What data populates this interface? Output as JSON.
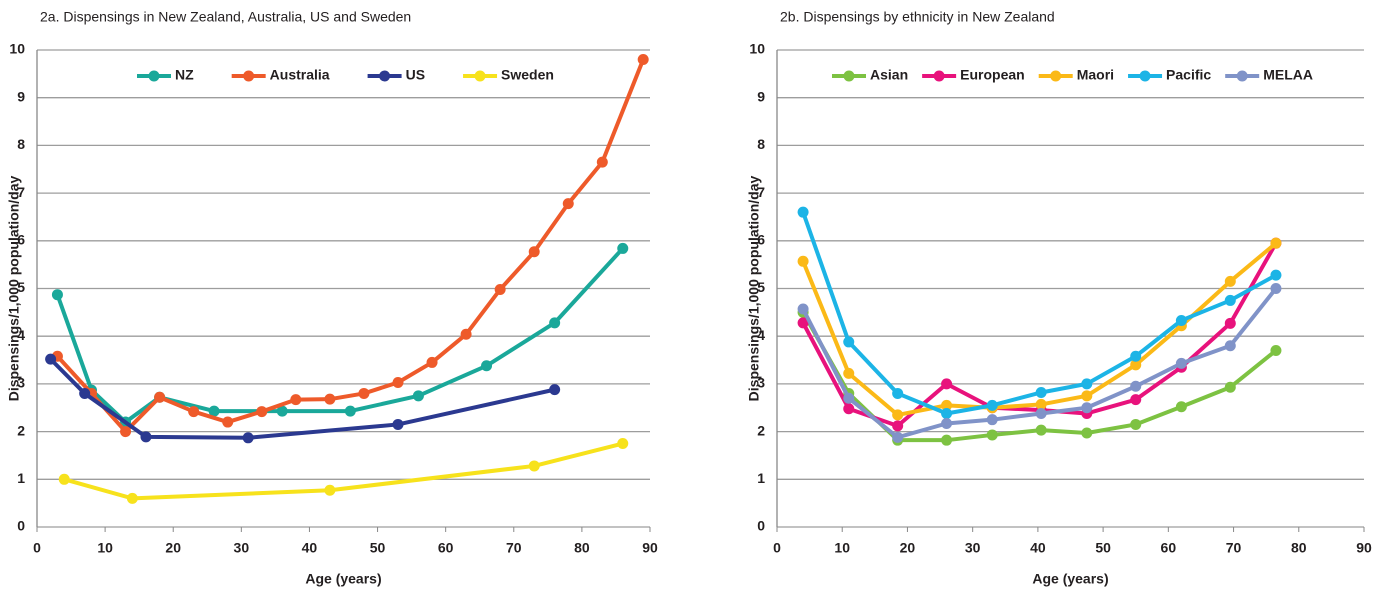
{
  "chart_data": [
    {
      "type": "line",
      "title": "2a. Dispensings in New Zealand, Australia, US and Sweden",
      "xlabel": "Age (years)",
      "ylabel": "Dispensings/1,000 population/day",
      "xlim": [
        0,
        90
      ],
      "xticks": [
        0,
        10,
        20,
        30,
        40,
        50,
        60,
        70,
        80,
        90
      ],
      "ylim": [
        0,
        10
      ],
      "yticks": [
        0,
        1,
        2,
        3,
        4,
        5,
        6,
        7,
        8,
        9,
        10
      ],
      "grid": true,
      "legend": "top",
      "series": [
        {
          "name": "NZ",
          "color": "#1aa89a",
          "x": [
            3,
            8,
            13,
            18,
            26,
            36,
            46,
            56,
            66,
            76,
            86
          ],
          "values": [
            4.87,
            2.87,
            2.2,
            2.72,
            2.43,
            2.43,
            2.43,
            2.75,
            3.38,
            4.28,
            5.84
          ]
        },
        {
          "name": "Australia",
          "color": "#ee5a2a",
          "x": [
            3,
            8,
            13,
            18,
            23,
            28,
            33,
            38,
            43,
            48,
            53,
            58,
            63,
            68,
            73,
            78,
            83,
            89
          ],
          "values": [
            3.58,
            2.8,
            2.0,
            2.72,
            2.42,
            2.2,
            2.42,
            2.67,
            2.68,
            2.8,
            3.03,
            3.45,
            4.04,
            4.98,
            5.77,
            6.78,
            7.65,
            9.8
          ]
        },
        {
          "name": "US",
          "color": "#2b3990",
          "x": [
            2,
            7,
            16,
            31,
            53,
            76
          ],
          "values": [
            3.52,
            2.8,
            1.89,
            1.87,
            2.15,
            2.88
          ]
        },
        {
          "name": "Sweden",
          "color": "#f7e21c",
          "x": [
            4,
            14,
            43,
            73,
            86
          ],
          "values": [
            1.0,
            0.6,
            0.77,
            1.28,
            1.75
          ]
        }
      ]
    },
    {
      "type": "line",
      "title": "2b. Dispensings by ethnicity in New Zealand",
      "xlabel": "Age (years)",
      "ylabel": "Dispensings/1,000 population/day",
      "xlim": [
        0,
        90
      ],
      "xticks": [
        0,
        10,
        20,
        30,
        40,
        50,
        60,
        70,
        80,
        90
      ],
      "ylim": [
        0,
        10
      ],
      "yticks": [
        0,
        1,
        2,
        3,
        4,
        5,
        6,
        7,
        8,
        9,
        10
      ],
      "grid": true,
      "legend": "top",
      "series": [
        {
          "name": "Asian",
          "color": "#7dc242",
          "x": [
            4,
            11,
            18.5,
            26,
            33,
            40.5,
            47.5,
            55,
            62,
            69.5,
            76.5
          ],
          "values": [
            4.5,
            2.8,
            1.82,
            1.82,
            1.93,
            2.03,
            1.97,
            2.15,
            2.52,
            2.93,
            3.7
          ]
        },
        {
          "name": "European",
          "color": "#e8127c",
          "x": [
            4,
            11,
            18.5,
            26,
            33,
            40.5,
            47.5,
            55,
            62,
            69.5,
            76.5
          ],
          "values": [
            4.28,
            2.48,
            2.12,
            3.0,
            2.5,
            2.45,
            2.38,
            2.67,
            3.35,
            4.27,
            5.95
          ]
        },
        {
          "name": "Maori",
          "color": "#fbb917",
          "x": [
            4,
            11,
            18.5,
            26,
            33,
            40.5,
            47.5,
            55,
            62,
            69.5,
            76.5
          ],
          "values": [
            5.57,
            3.22,
            2.35,
            2.55,
            2.5,
            2.57,
            2.75,
            3.4,
            4.22,
            5.15,
            5.95
          ]
        },
        {
          "name": "Pacific",
          "color": "#1cb4e6",
          "x": [
            4,
            11,
            18.5,
            26,
            33,
            40.5,
            47.5,
            55,
            62,
            69.5,
            76.5
          ],
          "values": [
            6.6,
            3.88,
            2.8,
            2.38,
            2.55,
            2.82,
            3.0,
            3.58,
            4.33,
            4.75,
            5.28
          ]
        },
        {
          "name": "MELAA",
          "color": "#8093c8",
          "x": [
            4,
            11,
            18.5,
            26,
            33,
            40.5,
            47.5,
            55,
            62,
            69.5,
            76.5
          ],
          "values": [
            4.57,
            2.7,
            1.88,
            2.17,
            2.25,
            2.38,
            2.5,
            2.95,
            3.43,
            3.8,
            5.0
          ]
        }
      ]
    }
  ]
}
